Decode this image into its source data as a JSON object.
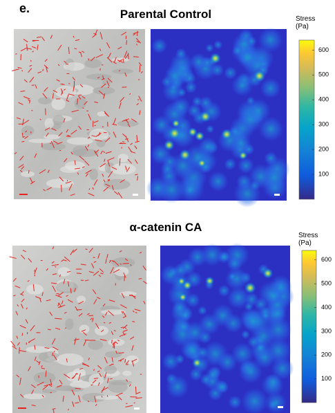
{
  "panel_label": "e.",
  "rows": [
    {
      "title": "Parental Control",
      "colorbar": {
        "label_lines": [
          "Stress",
          "(Pa)"
        ],
        "lim": [
          0,
          640
        ],
        "ticks": [
          100,
          200,
          300,
          400,
          500,
          600
        ]
      }
    },
    {
      "title": "α-catenin CA",
      "colorbar": {
        "label_lines": [
          "Stress",
          "(Pa)"
        ],
        "lim": [
          0,
          640
        ],
        "ticks": [
          100,
          200,
          300,
          400,
          500,
          600
        ]
      }
    }
  ]
}
